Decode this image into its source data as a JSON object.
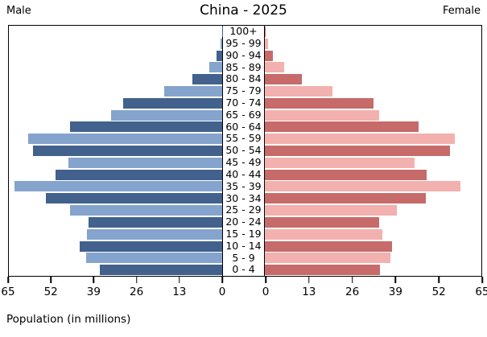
{
  "header": {
    "male_label": "Male",
    "female_label": "Female"
  },
  "footer": {
    "xlabel": "Population (in millions)"
  },
  "chart_data": {
    "type": "bar",
    "variant": "population-pyramid",
    "title": "China - 2025",
    "xlabel": "Population (in millions)",
    "left_series_label": "Male",
    "right_series_label": "Female",
    "xlim": [
      0,
      65
    ],
    "axis_ticks": [
      0,
      13,
      26,
      39,
      52,
      65
    ],
    "grid": false,
    "legend_position": "none",
    "age_groups": [
      "100+",
      "95 - 99",
      "90 - 94",
      "85 - 89",
      "80 - 84",
      "75 - 79",
      "70 - 74",
      "65 - 69",
      "60 - 64",
      "55 - 59",
      "50 - 54",
      "45 - 49",
      "40 - 44",
      "35 - 39",
      "30 - 34",
      "25 - 29",
      "20 - 24",
      "15 - 19",
      "10 - 14",
      "5 - 9",
      "0 - 4"
    ],
    "series": [
      {
        "name": "Male",
        "side": "left",
        "values": [
          0.1,
          0.5,
          1.6,
          4.0,
          9.0,
          17.6,
          30.2,
          33.9,
          46.3,
          59.0,
          57.7,
          46.8,
          50.9,
          63.2,
          53.6,
          46.3,
          40.7,
          41.1,
          43.3,
          41.5,
          37.3
        ]
      },
      {
        "name": "Female",
        "side": "right",
        "values": [
          0.3,
          1.0,
          2.3,
          5.9,
          11.2,
          20.2,
          32.6,
          34.2,
          46.1,
          57.1,
          55.5,
          45.0,
          48.5,
          58.6,
          48.3,
          39.6,
          34.4,
          35.2,
          38.2,
          37.6,
          34.6
        ]
      }
    ],
    "colors": {
      "male_dark": "#42618c",
      "male_light": "#84a4cd",
      "female_dark": "#c76a6a",
      "female_light": "#f2b1ae"
    }
  }
}
